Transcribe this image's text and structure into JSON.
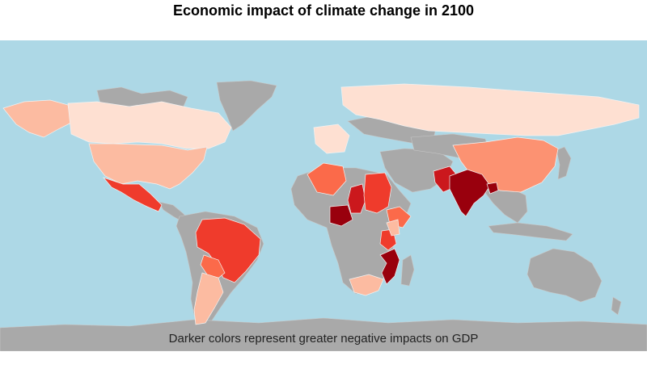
{
  "title": "Economic impact of climate change in 2100",
  "caption": "Darker colors represent greater negative impacts on GDP",
  "colors": {
    "ocean": "#add8e6",
    "no_data": "#a9a9a9",
    "border": "#c8c8c8",
    "scale_low_to_high": [
      "#fee0d2",
      "#fcbba1",
      "#fc9272",
      "#fb6a4a",
      "#ef3b2c",
      "#cb181d",
      "#99000d"
    ]
  },
  "chart_data": {
    "type": "choropleth",
    "title": "Economic impact of climate change in 2100",
    "annotation": "Darker colors represent greater negative impacts on GDP",
    "scale": "sequential reds, darker = greater negative impact on GDP",
    "regions": [
      {
        "region": "Canada",
        "level": 1
      },
      {
        "region": "Russia",
        "level": 1
      },
      {
        "region": "Western Europe",
        "level": 1
      },
      {
        "region": "United States",
        "level": 2
      },
      {
        "region": "Alaska",
        "level": 2
      },
      {
        "region": "Argentina",
        "level": 2
      },
      {
        "region": "South Africa",
        "level": 2
      },
      {
        "region": "Tanzania",
        "level": 2
      },
      {
        "region": "China",
        "level": 3
      },
      {
        "region": "Algeria",
        "level": 4
      },
      {
        "region": "Paraguay",
        "level": 4
      },
      {
        "region": "Ethiopia",
        "level": 4
      },
      {
        "region": "Mexico",
        "level": 5
      },
      {
        "region": "Brazil",
        "level": 5
      },
      {
        "region": "Kenya",
        "level": 5
      },
      {
        "region": "Sudan",
        "level": 5
      },
      {
        "region": "Chad",
        "level": 6
      },
      {
        "region": "Pakistan",
        "level": 6
      },
      {
        "region": "Nigeria",
        "level": 7
      },
      {
        "region": "India",
        "level": 7
      },
      {
        "region": "Bangladesh",
        "level": 7
      },
      {
        "region": "Mozambique",
        "level": 7
      },
      {
        "region": "Australia",
        "level": 0
      },
      {
        "region": "Greenland",
        "level": 0
      },
      {
        "region": "Antarctica",
        "level": 0
      }
    ]
  }
}
